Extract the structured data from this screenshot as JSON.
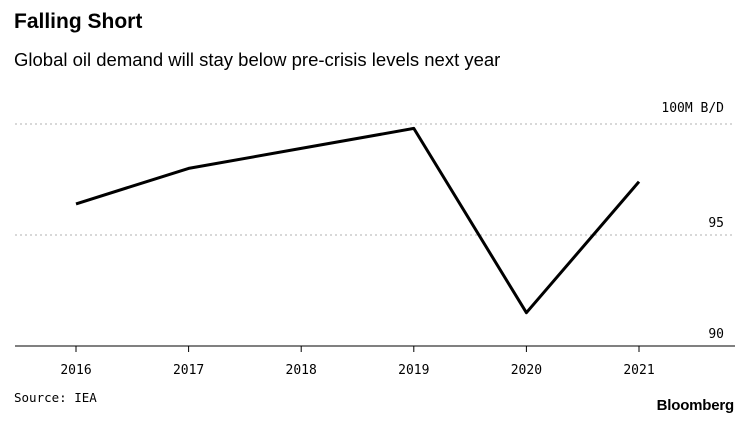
{
  "header": {
    "title": "Falling Short",
    "subtitle": "Global oil demand will stay below pre-crisis levels next year"
  },
  "footer": {
    "source": "Source: IEA",
    "brand": "Bloomberg"
  },
  "chart_data": {
    "type": "line",
    "x": [
      "2016",
      "2017",
      "2018",
      "2019",
      "2020",
      "2021"
    ],
    "series": [
      {
        "values": [
          96.4,
          98.0,
          98.9,
          99.8,
          91.5,
          97.4
        ]
      }
    ],
    "y_unit_label": "100M B/D",
    "y_ticks": [
      {
        "value": 100,
        "label": ""
      },
      {
        "value": 95,
        "label": "95"
      },
      {
        "value": 90,
        "label": "90"
      }
    ],
    "ylim": [
      89.5,
      101
    ],
    "grid": true,
    "colors": {
      "line": "#000000",
      "grid": "#b0b0b0",
      "axis": "#000000"
    }
  }
}
